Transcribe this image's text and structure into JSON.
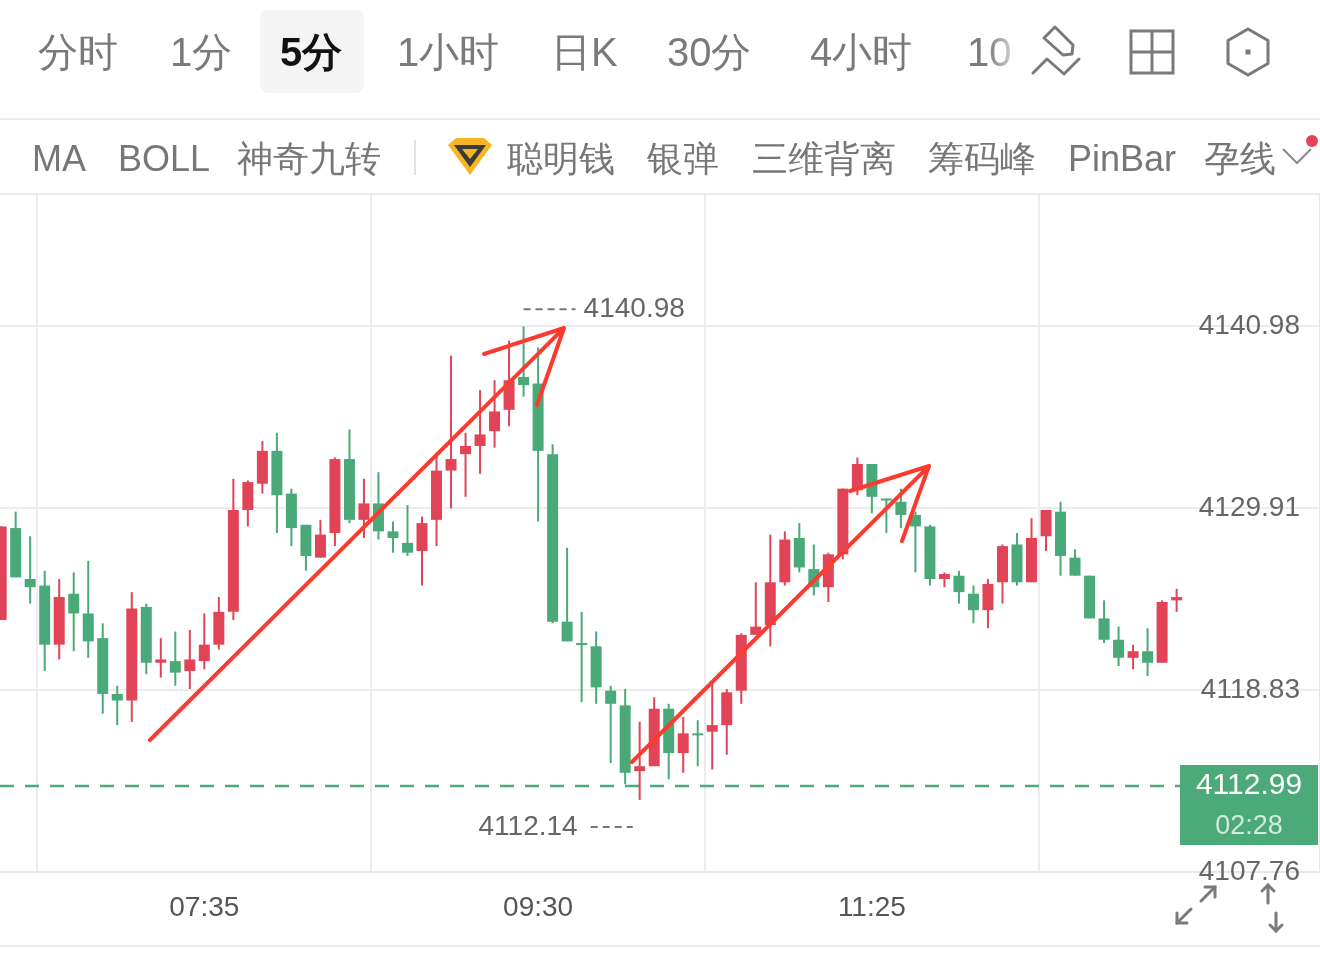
{
  "chart_data": [
    {
      "type": "other",
      "annotations": [
        "分时",
        "1分",
        "5分",
        "1小时",
        "日K",
        "30分",
        "4小时",
        "10"
      ]
    },
    {
      "type": "other",
      "annotations": [
        "MA",
        "BOLL",
        "神奇九转",
        "聪明钱",
        "银弹",
        "三维背离",
        "筹码峰",
        "PinBar",
        "孕线"
      ]
    },
    {
      "type": "candlestick",
      "x": [
        6.4167,
        6.5,
        6.5833,
        6.6667,
        6.75,
        6.8333,
        6.9167,
        7,
        7.0833,
        7.1667,
        7.25,
        7.3333,
        7.4167,
        7.5,
        7.5833,
        7.6667,
        7.75,
        7.8333,
        7.9167,
        8,
        8.0833,
        8.1667,
        8.25,
        8.3333,
        8.4167,
        8.5,
        8.5833,
        8.6667,
        8.75,
        8.8333,
        8.9167,
        9,
        9.0833,
        9.1667,
        9.25,
        9.3333,
        9.4167,
        9.5,
        9.5833,
        9.6667,
        9.75,
        9.8333,
        9.9167,
        10,
        10.0833,
        10.1667,
        10.25,
        10.3333,
        10.4167,
        10.5,
        10.5833,
        10.6667,
        10.75,
        10.8333,
        10.9167,
        11,
        11.0833,
        11.1667,
        11.25,
        11.3333,
        11.4167,
        11.5,
        11.5833,
        11.6667,
        11.75,
        11.8333,
        11.9167,
        12,
        12.0833,
        12.1667,
        12.25,
        12.3333,
        12.4167,
        12.5,
        12.5833,
        12.6667,
        12.75,
        12.8333,
        12.9167,
        13,
        13.0833,
        13.1667
      ],
      "ohlc": [
        [
          4123.1,
          4128.8,
          4123.1,
          4128.8
        ],
        [
          4128.7,
          4129.7,
          4125.7,
          4125.7
        ],
        [
          4125.6,
          4128.2,
          4124.1,
          4125.1
        ],
        [
          4125.2,
          4126.1,
          4120.0,
          4121.6
        ],
        [
          4121.6,
          4125.6,
          4120.7,
          4124.5
        ],
        [
          4124.7,
          4126.0,
          4121.2,
          4123.5
        ],
        [
          4123.5,
          4126.7,
          4120.8,
          4121.8
        ],
        [
          4122.0,
          4122.9,
          4117.4,
          4118.6
        ],
        [
          4118.6,
          4119.1,
          4116.7,
          4118.2
        ],
        [
          4118.2,
          4124.8,
          4116.9,
          4123.8
        ],
        [
          4123.9,
          4124.1,
          4119.8,
          4120.5
        ],
        [
          4120.5,
          4122.0,
          4119.6,
          4120.7
        ],
        [
          4120.6,
          4122.4,
          4119.1,
          4119.9
        ],
        [
          4120.0,
          4122.5,
          4118.9,
          4120.7
        ],
        [
          4120.6,
          4123.5,
          4120.1,
          4121.6
        ],
        [
          4121.6,
          4124.5,
          4121.3,
          4123.6
        ],
        [
          4123.6,
          4131.7,
          4123.1,
          4129.8
        ],
        [
          4129.8,
          4131.6,
          4128.8,
          4131.5
        ],
        [
          4131.4,
          4134.0,
          4130.8,
          4133.4
        ],
        [
          4133.4,
          4134.5,
          4128.4,
          4130.7
        ],
        [
          4130.8,
          4131.1,
          4127.6,
          4128.7
        ],
        [
          4128.9,
          4128.9,
          4126.1,
          4127.0
        ],
        [
          4126.9,
          4129.2,
          4126.9,
          4128.3
        ],
        [
          4128.4,
          4133.0,
          4127.6,
          4132.9
        ],
        [
          4132.9,
          4134.7,
          4129.0,
          4129.2
        ],
        [
          4129.2,
          4131.7,
          4128.1,
          4130.2
        ],
        [
          4130.2,
          4132.1,
          4128.0,
          4128.5
        ],
        [
          4128.5,
          4129.1,
          4127.2,
          4128.1
        ],
        [
          4127.8,
          4130.1,
          4127.0,
          4127.2
        ],
        [
          4127.3,
          4129.4,
          4125.2,
          4129.0
        ],
        [
          4129.2,
          4133.3,
          4127.6,
          4132.2
        ],
        [
          4132.2,
          4139.2,
          4129.9,
          4132.9
        ],
        [
          4133.2,
          4134.5,
          4130.6,
          4133.7
        ],
        [
          4133.7,
          4137.1,
          4132.0,
          4134.4
        ],
        [
          4134.6,
          4137.7,
          4133.6,
          4135.8
        ],
        [
          4135.9,
          4140.1,
          4134.9,
          4137.7
        ],
        [
          4137.9,
          4140.98,
          4136.7,
          4137.4
        ],
        [
          4137.5,
          4139.7,
          4129.1,
          4133.4
        ],
        [
          4133.2,
          4133.8,
          4122.9,
          4123.0
        ],
        [
          4123.0,
          4127.5,
          4121.8,
          4121.8
        ],
        [
          4121.7,
          4123.6,
          4118.1,
          4121.7
        ],
        [
          4121.5,
          4122.4,
          4118.0,
          4119.0
        ],
        [
          4118.8,
          4119.1,
          4114.4,
          4118.0
        ],
        [
          4117.9,
          4118.9,
          4113.1,
          4113.8
        ],
        [
          4113.9,
          4116.9,
          4112.14,
          4114.2
        ],
        [
          4114.2,
          4118.4,
          4114.2,
          4117.7
        ],
        [
          4117.7,
          4118.0,
          4113.4,
          4115.0
        ],
        [
          4115.0,
          4117.2,
          4113.8,
          4116.2
        ],
        [
          4116.2,
          4117.0,
          4114.2,
          4116.2
        ],
        [
          4116.3,
          4119.3,
          4114.0,
          4116.7
        ],
        [
          4116.7,
          4118.9,
          4114.9,
          4118.7
        ],
        [
          4118.8,
          4122.3,
          4118.0,
          4122.2
        ],
        [
          4122.2,
          4125.4,
          4122.2,
          4122.7
        ],
        [
          4122.8,
          4128.3,
          4121.5,
          4125.4
        ],
        [
          4125.4,
          4128.5,
          4125.2,
          4128.0
        ],
        [
          4128.1,
          4129.0,
          4126.0,
          4126.3
        ],
        [
          4126.2,
          4127.7,
          4124.6,
          4125.1
        ],
        [
          4125.1,
          4127.2,
          4124.2,
          4127.1
        ],
        [
          4127.1,
          4131.1,
          4126.8,
          4131.1
        ],
        [
          4131.0,
          4133.0,
          4130.7,
          4132.6
        ],
        [
          4132.6,
          4132.6,
          4129.6,
          4130.6
        ],
        [
          4130.5,
          4130.5,
          4128.4,
          4130.4
        ],
        [
          4130.3,
          4131.1,
          4128.7,
          4129.5
        ],
        [
          4129.5,
          4129.7,
          4126.0,
          4128.8
        ],
        [
          4128.8,
          4128.9,
          4125.2,
          4125.6
        ],
        [
          4125.6,
          4126.0,
          4125.1,
          4125.9
        ],
        [
          4125.8,
          4126.1,
          4124.1,
          4124.8
        ],
        [
          4124.7,
          4125.2,
          4122.9,
          4123.7
        ],
        [
          4123.7,
          4125.6,
          4122.6,
          4125.3
        ],
        [
          4125.4,
          4127.7,
          4124.1,
          4127.6
        ],
        [
          4127.7,
          4128.4,
          4125.2,
          4125.4
        ],
        [
          4125.4,
          4129.3,
          4125.4,
          4128.1
        ],
        [
          4128.2,
          4129.8,
          4127.3,
          4129.8
        ],
        [
          4129.7,
          4130.3,
          4125.8,
          4127.0
        ],
        [
          4126.9,
          4127.4,
          4125.8,
          4125.8
        ],
        [
          4125.8,
          4125.8,
          4123.2,
          4123.2
        ],
        [
          4123.2,
          4124.3,
          4121.7,
          4121.9
        ],
        [
          4121.9,
          4122.7,
          4120.3,
          4120.8
        ],
        [
          4120.8,
          4121.6,
          4120.1,
          4121.2
        ],
        [
          4121.2,
          4122.6,
          4119.7,
          4120.5
        ],
        [
          4120.5,
          4124.3,
          4120.5,
          4124.2
        ],
        [
          4124.3,
          4125.0,
          4123.6,
          4124.5
        ]
      ],
      "colors": [
        "#e04456",
        "#4aa978",
        "#4aa978",
        "#4aa978",
        "#e04456",
        "#4aa978",
        "#4aa978",
        "#4aa978",
        "#4aa978",
        "#e04456",
        "#4aa978",
        "#e04456",
        "#4aa978",
        "#e04456",
        "#e04456",
        "#e04456",
        "#e04456",
        "#e04456",
        "#e04456",
        "#4aa978",
        "#4aa978",
        "#4aa978",
        "#e04456",
        "#e04456",
        "#4aa978",
        "#e04456",
        "#4aa978",
        "#4aa978",
        "#4aa978",
        "#e04456",
        "#e04456",
        "#e04456",
        "#e04456",
        "#e04456",
        "#e04456",
        "#e04456",
        "#4aa978",
        "#4aa978",
        "#4aa978",
        "#4aa978",
        "#4aa978",
        "#4aa978",
        "#4aa978",
        "#4aa978",
        "#e04456",
        "#e04456",
        "#4aa978",
        "#e04456",
        "#4aa978",
        "#e04456",
        "#e04456",
        "#e04456",
        "#e04456",
        "#e04456",
        "#e04456",
        "#4aa978",
        "#4aa978",
        "#e04456",
        "#e04456",
        "#e04456",
        "#4aa978",
        "#4aa978",
        "#4aa978",
        "#4aa978",
        "#4aa978",
        "#e04456",
        "#4aa978",
        "#4aa978",
        "#e04456",
        "#e04456",
        "#4aa978",
        "#e04456",
        "#e04456",
        "#4aa978",
        "#4aa978",
        "#4aa978",
        "#4aa978",
        "#4aa978",
        "#e04456",
        "#4aa978",
        "#e04456",
        "#e04456"
      ],
      "xlim": [
        6.41,
        13.99
      ],
      "xticks": [
        {
          "value": 7.5833,
          "label": "07:35"
        },
        {
          "value": 9.5,
          "label": "09:30"
        },
        {
          "value": 11.4167,
          "label": "11:25"
        }
      ],
      "ylim": [
        4107.76,
        4149.1
      ],
      "yticks": [
        4107.76,
        4118.83,
        4129.91,
        4140.98
      ],
      "grid": true,
      "ref_lines": [
        {
          "axis": "y",
          "value": 4112.99,
          "label": "4112.99\n02:28",
          "color": "#4caa7a",
          "line_style": "dashed"
        }
      ],
      "annotations": [
        {
          "text": "4140.98",
          "x": 9.4167,
          "y": 4140.98
        },
        {
          "text": "4112.14",
          "x": 10.0833,
          "y": 4112.14
        }
      ]
    }
  ]
}
